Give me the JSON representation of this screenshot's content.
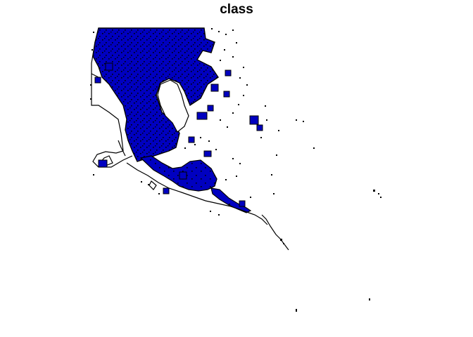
{
  "plot": {
    "title": "class",
    "fill_color": "#0000c0",
    "border_color": "#000000",
    "background_color": "#ffffff",
    "legend": "none",
    "axes": "none",
    "grid": false
  }
}
